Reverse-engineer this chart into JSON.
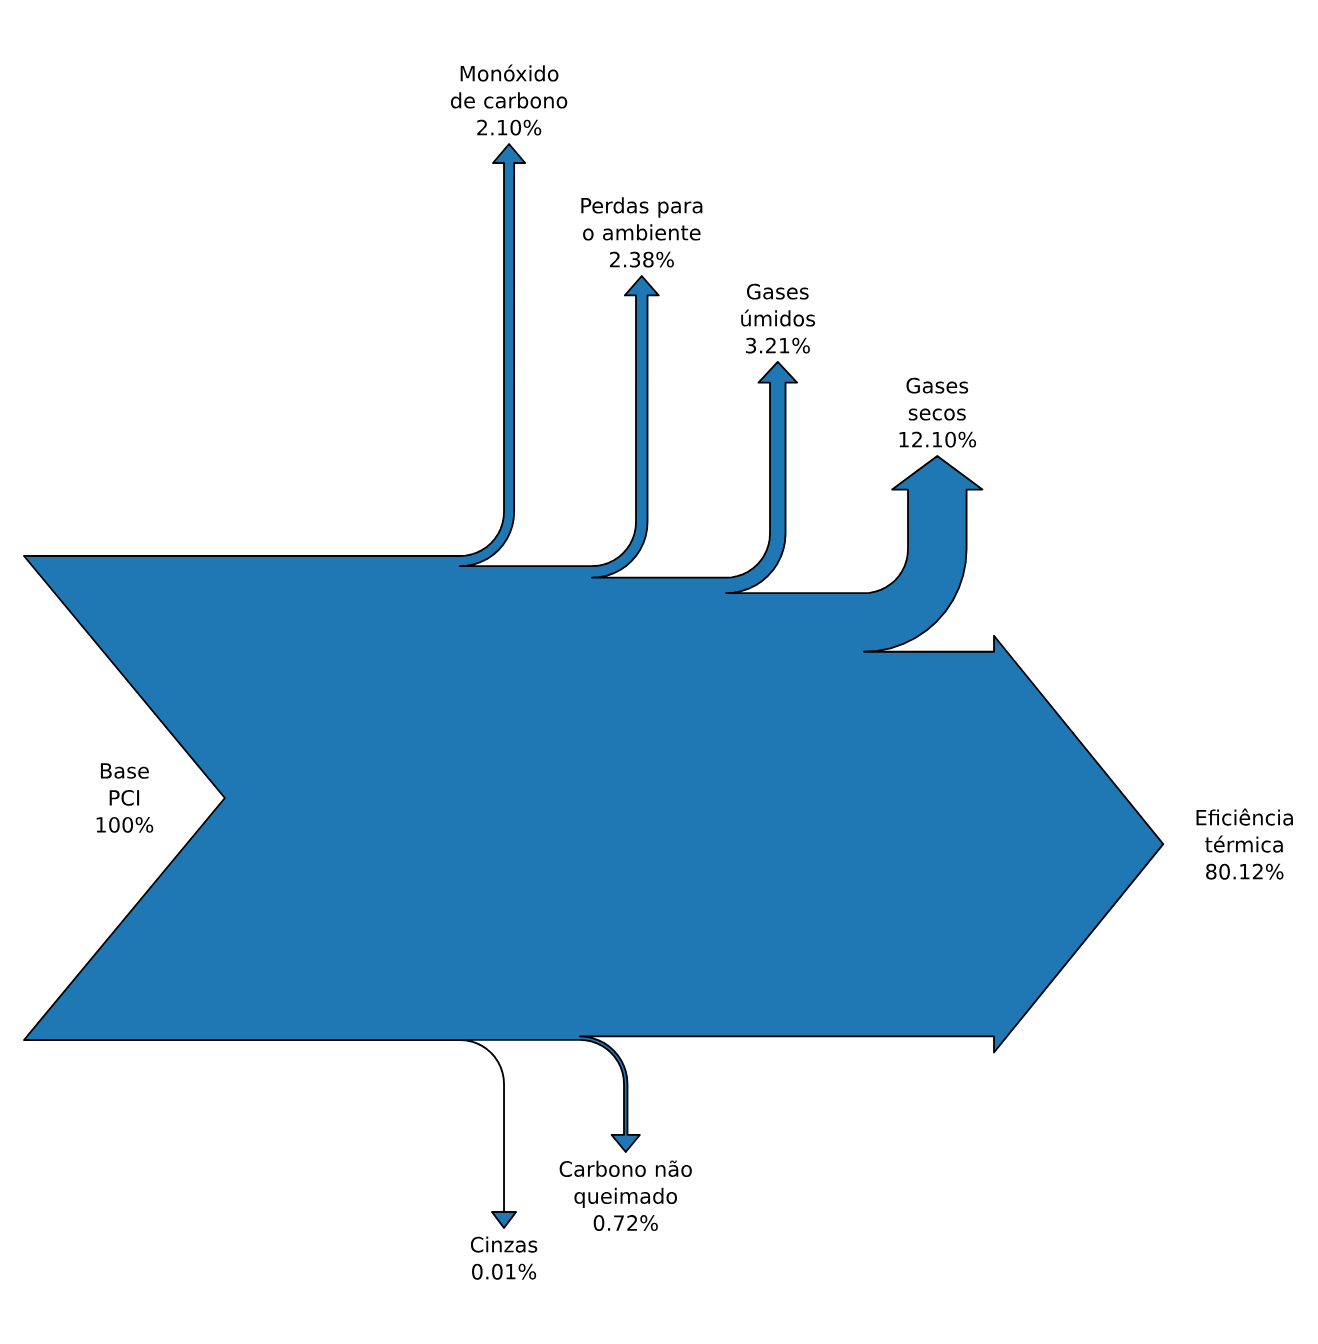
{
  "chart_data": {
    "type": "other",
    "color": "#1f77b4",
    "categories": [
      "Base PCI",
      "Monóxido de carbono",
      "Perdas para o ambiente",
      "Gases úmidos",
      "Gases secos",
      "Eficiência térmica",
      "Cinzas",
      "Carbono não queimado"
    ],
    "values": [
      100,
      2.1,
      2.38,
      3.21,
      12.1,
      80.12,
      0.01,
      0.72
    ],
    "value_labels": [
      "100%",
      "2.10%",
      "2.38%",
      "3.21%",
      "12.10%",
      "80.12%",
      "0.01%",
      "0.72%"
    ]
  }
}
